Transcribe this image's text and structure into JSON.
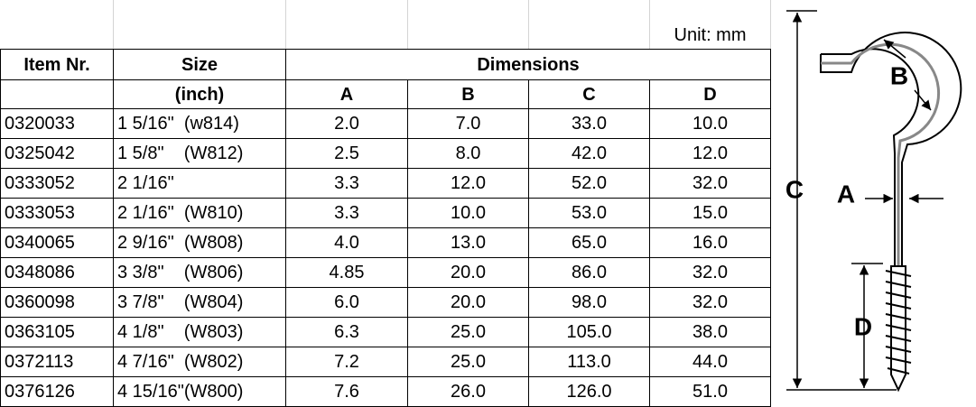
{
  "unit": "Unit: mm",
  "table": {
    "headers": {
      "item": "Item Nr.",
      "size": "Size",
      "size_unit": "(inch)",
      "dimensions": "Dimensions",
      "columns": [
        "A",
        "B",
        "C",
        "D"
      ]
    },
    "rows": [
      [
        "0320033",
        "1 5/16\"  (w814)",
        "2.0",
        "7.0",
        "33.0",
        "10.0"
      ],
      [
        "0325042",
        "1 5/8\"    (W812)",
        "2.5",
        "8.0",
        "42.0",
        "12.0"
      ],
      [
        "0333052",
        "2 1/16\"",
        "3.3",
        "12.0",
        "52.0",
        "32.0"
      ],
      [
        "0333053",
        "2 1/16\"  (W810)",
        "3.3",
        "10.0",
        "53.0",
        "15.0"
      ],
      [
        "0340065",
        "2 9/16\"  (W808)",
        "4.0",
        "13.0",
        "65.0",
        "16.0"
      ],
      [
        "0348086",
        "3 3/8\"    (W806)",
        "4.85",
        "20.0",
        "86.0",
        "32.0"
      ],
      [
        "0360098",
        "3 7/8\"    (W804)",
        "6.0",
        "20.0",
        "98.0",
        "32.0"
      ],
      [
        "0363105",
        "4 1/8\"    (W803)",
        "6.3",
        "25.0",
        "105.0",
        "38.0"
      ],
      [
        "0372113",
        "4 7/16\"  (W802)",
        "7.2",
        "25.0",
        "113.0",
        "44.0"
      ],
      [
        "0376126",
        "4 15/16\"(W800)",
        "7.6",
        "26.0",
        "126.0",
        "51.0"
      ]
    ]
  },
  "diagram": {
    "labels": {
      "b": "B",
      "c": "C",
      "a": "A",
      "d": "D"
    }
  }
}
